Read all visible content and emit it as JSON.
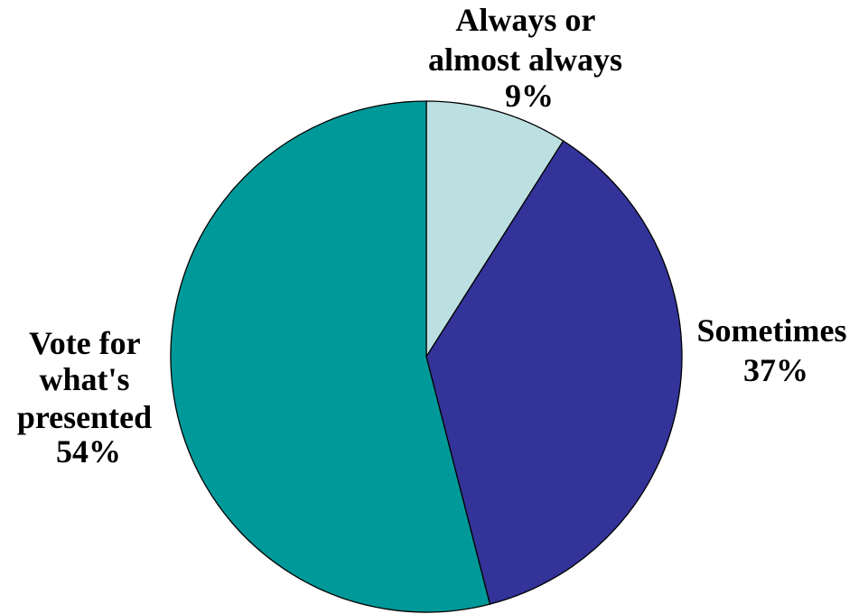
{
  "chart_data": {
    "type": "pie",
    "start_angle_deg": 0,
    "direction": "clockwise",
    "slices": [
      {
        "lines": [
          "Always or",
          "almost always"
        ],
        "percent_label": "9%",
        "value": 9,
        "color": "#BCE0E2"
      },
      {
        "lines": [
          "Sometimes"
        ],
        "percent_label": "37%",
        "value": 37,
        "color": "#333399"
      },
      {
        "lines": [
          "Vote for",
          "what's",
          "presented"
        ],
        "percent_label": "54%",
        "value": 54,
        "color": "#009999"
      }
    ]
  }
}
